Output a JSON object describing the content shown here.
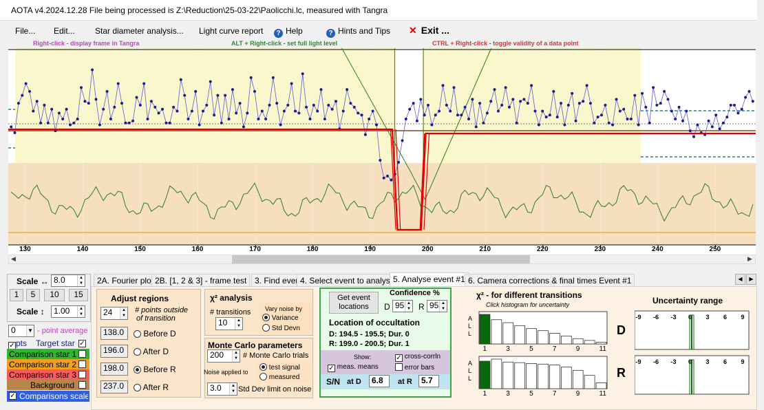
{
  "window": {
    "title": "AOTA v4.2024.12.28    File being processed is Z:\\Reduction\\25-03-22\\Paolicchi.lc, measured with Tangra"
  },
  "menu": {
    "file": "File...",
    "edit": "Edit...",
    "star_diameter": "Star diameter analysis...",
    "light_curve_report": "Light curve report",
    "help": "Help",
    "hints": "Hints and Tips",
    "exit": "Exit ..."
  },
  "hints": {
    "right_click": "Right-click  -  display frame in Tangra",
    "alt_right_click": "ALT + Right-click  -  set full light level",
    "ctrl_right_click": "CTRL + Right-click  -  toggle validity of a data point"
  },
  "colors": {
    "bg_yellow": "#fbf7cc",
    "bg_tan": "#f6dfbe",
    "data_blue": "#1c1c8a",
    "model_red": "#e00000",
    "green_line": "#2e7d1f",
    "baseline_orange": "#e8a030",
    "teal_dash": "#1f7f7f"
  },
  "chart_data": {
    "type": "line",
    "x_ticks": [
      "130",
      "140",
      "150",
      "160",
      "170",
      "180",
      "190",
      "200",
      "210",
      "220",
      "230",
      "240",
      "250"
    ],
    "xlim": [
      127,
      257
    ],
    "ylim": [
      0,
      1
    ],
    "series": [
      {
        "values": [
          0.6,
          0.57,
          0.72,
          0.76,
          0.82,
          0.78,
          0.68,
          0.73,
          0.62,
          0.71,
          0.62,
          0.69,
          0.58,
          0.67,
          0.64,
          0.69,
          0.61,
          0.62,
          0.64,
          0.8,
          0.73,
          0.72,
          0.89,
          0.74,
          0.61,
          0.69,
          0.78,
          0.64,
          0.7,
          0.82,
          0.72,
          0.62,
          0.62,
          0.63,
          0.75,
          0.71,
          0.82,
          0.64,
          0.73,
          0.7,
          0.67,
          0.69,
          0.62,
          0.62,
          0.7,
          0.68,
          0.84,
          0.76,
          0.64,
          0.68,
          0.78,
          0.61,
          0.68,
          0.71,
          0.83,
          0.66,
          0.76,
          0.62,
          0.76,
          0.64,
          0.79,
          0.67,
          0.72,
          0.6,
          0.67,
          0.85,
          0.78,
          0.64,
          0.68,
          0.64,
          0.71,
          0.85,
          0.72,
          0.61,
          0.68,
          0.71,
          0.82,
          0.68,
          0.67,
          0.87,
          0.7,
          0.64,
          0.71,
          0.68,
          0.79,
          0.64,
          0.71,
          0.69,
          0.73,
          0.59,
          0.68,
          0.79,
          0.72,
          0.7,
          0.67,
          0.66,
          0.56,
          0.64,
          0.68,
          0.61,
          0.43,
          0.34,
          0.35,
          0.33,
          0.36,
          0.42,
          0.53,
          0.64,
          0.69,
          0.72,
          0.63,
          0.74,
          0.66,
          0.71,
          0.61,
          0.66,
          0.68,
          0.81,
          0.71,
          0.68,
          0.8,
          0.66,
          0.66,
          0.7,
          0.64,
          0.74,
          0.6,
          0.72,
          0.62,
          0.67,
          0.73,
          0.79,
          0.68,
          0.71,
          0.8,
          0.7,
          0.74,
          0.62,
          0.73,
          0.74,
          0.72,
          0.81,
          0.68,
          0.61,
          0.68,
          0.65,
          0.66,
          0.78,
          0.65,
          0.72,
          0.61,
          0.71,
          0.77,
          0.63,
          0.72,
          0.73,
          0.81,
          0.72,
          0.62,
          0.65,
          0.66,
          0.71,
          0.62,
          0.61,
          0.74,
          0.68,
          0.69,
          0.64,
          0.64,
          0.76,
          0.61,
          0.77,
          0.7,
          0.62,
          0.8,
          0.71,
          0.72,
          0.78,
          0.74,
          0.68,
          0.64,
          0.7,
          0.63,
          0.68,
          0.58,
          0.55,
          0.61,
          0.57,
          0.56,
          0.63,
          0.6,
          0.66,
          0.59,
          0.62,
          0.65,
          0.71,
          0.71,
          0.67,
          0.69,
          0.75,
          0.78,
          0.73
        ]
      }
    ]
  },
  "left": {
    "scale_h_label": "Scale ↔",
    "scale_h_value": "8.0",
    "btn_1": "1",
    "btn_5": "5",
    "btn_10": "10",
    "btn_15": "15",
    "scale_v_label": "Scale ↕",
    "scale_v_value": "1.00",
    "point_avg_value": "0",
    "point_avg_label": "- point average",
    "pts_label": "pts",
    "target_label": "Target star",
    "comp1": "Comparison star 1",
    "comp2": "Comparison star 2",
    "comp3": "Comparison star 3",
    "background": "Background",
    "comps_scaled": "Comparisons scaled",
    "comp1_color": "#2db82d",
    "comp2_color": "#f0a020",
    "comp3_color": "#ff5a5a",
    "background_color": "#b8864a",
    "comps_scaled_color": "#3060e0"
  },
  "tabs": {
    "t2a": "2A. Fourier plot",
    "t2b": "2B. [1, 2 & 3] - frame test",
    "t3": "3. Find events",
    "t4": "4. Select event to analyse",
    "t5": "5. Analyse event #1",
    "t6": "6. Camera corrections & final times Event #1"
  },
  "adjust": {
    "title": "Adjust regions",
    "points_value": "24",
    "points_label_1": "# points outside",
    "points_label_2": "of transition",
    "before_d_value": "138.0",
    "before_d_label": "Before D",
    "after_d_value": "196.0",
    "after_d_label": "After D",
    "before_r_value": "198.0",
    "before_r_label": "Before R",
    "after_r_value": "237.0",
    "after_r_label": "After R"
  },
  "chi": {
    "title": "χ² analysis",
    "transitions_label": "# transitions",
    "transitions_value": "10",
    "vary_label": "Vary noise by",
    "variance": "Variance",
    "std_devn": "Std Devn"
  },
  "montecarlo": {
    "title": "Monte Carlo parameters",
    "trials_value": "200",
    "trials_label": "# Monte Carlo trials",
    "noise_applied": "Noise applied to",
    "test_signal": "test signal",
    "measured": "measured",
    "std_limit_value": "3.0",
    "std_limit_label": "Std Dev limit on noise"
  },
  "event": {
    "get_btn_1": "Get event",
    "get_btn_2": "locations",
    "confidence": "Confidence %",
    "d_label": "D",
    "d_value": "95",
    "r_label": "R",
    "r_value": "95",
    "location_title": "Location of occultation",
    "d_line": "D: 194.5 - 195.5; Dur. 0",
    "r_line": "R: 199.0 - 200.5; Dur. 1",
    "show": "Show:",
    "cross_corr": "cross-corrln",
    "meas_means": "meas. means",
    "error_bars": "error bars",
    "sn": "S/N",
    "at_d": "at D",
    "sn_d": "6.8",
    "at_r": "at R",
    "sn_r": "5.7"
  },
  "histogram": {
    "title": "χ² - for different transitions",
    "subtitle": "Click histogram for uncertainty",
    "all_label": "A L L",
    "ticks": [
      "1",
      "3",
      "5",
      "7",
      "9",
      "11"
    ],
    "d_heights": [
      1.0,
      0.82,
      0.72,
      0.62,
      0.52,
      0.45,
      0.36,
      0.27,
      0.18,
      0.12,
      0.06
    ],
    "r_heights": [
      0.93,
      1.0,
      0.9,
      0.88,
      0.85,
      0.83,
      0.8,
      0.73,
      0.62,
      0.45,
      0.2
    ]
  },
  "uncertainty": {
    "title": "Uncertainty range",
    "d_label": "D",
    "r_label": "R",
    "ticks": [
      "-9",
      "-6",
      "-3",
      "0",
      "3",
      "6",
      "9"
    ]
  }
}
